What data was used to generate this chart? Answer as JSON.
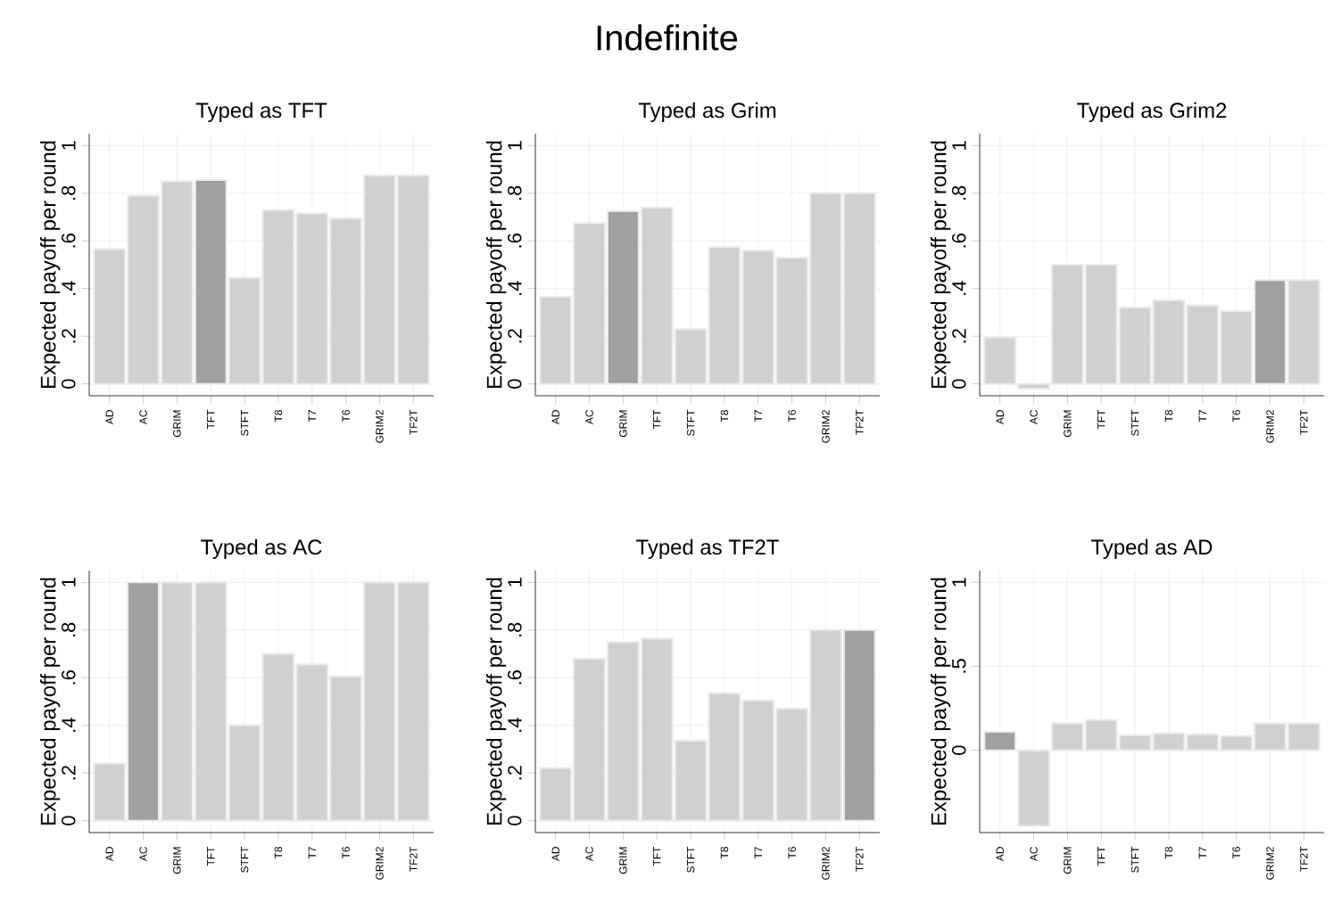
{
  "chart_data": [
    {
      "type": "bar",
      "title": "Typed as TFT",
      "ylabel": "Expected payoff per round",
      "annotations": [
        "Indefinite"
      ],
      "categories": [
        "AD",
        "AC",
        "GRIM",
        "TFT",
        "STFT",
        "T8",
        "T7",
        "T6",
        "GRIM2",
        "TF2T"
      ],
      "values": [
        0.565,
        0.79,
        0.85,
        0.855,
        0.445,
        0.73,
        0.715,
        0.695,
        0.875,
        0.875
      ],
      "colors": [
        "#d0d0d0",
        "#d0d0d0",
        "#d0d0d0",
        "#a0a0a0",
        "#d0d0d0",
        "#d0d0d0",
        "#d0d0d0",
        "#d0d0d0",
        "#d0d0d0",
        "#d0d0d0"
      ],
      "ylim": [
        -0.05,
        1.05
      ],
      "yticks": [
        0,
        {
          "value": 0.2,
          "label": ".2"
        },
        {
          "value": 0.4,
          "label": ".4"
        },
        {
          "value": 0.6,
          "label": ".6"
        },
        {
          "value": 0.8,
          "label": ".8"
        },
        1
      ],
      "grid": true
    },
    {
      "type": "bar",
      "title": "Typed as Grim",
      "ylabel": "Expected payoff per round",
      "categories": [
        "AD",
        "AC",
        "GRIM",
        "TFT",
        "STFT",
        "T8",
        "T7",
        "T6",
        "GRIM2",
        "TF2T"
      ],
      "values": [
        0.365,
        0.675,
        0.725,
        0.74,
        0.23,
        0.575,
        0.56,
        0.53,
        0.8,
        0.8
      ],
      "colors": [
        "#d0d0d0",
        "#d0d0d0",
        "#a0a0a0",
        "#d0d0d0",
        "#d0d0d0",
        "#d0d0d0",
        "#d0d0d0",
        "#d0d0d0",
        "#d0d0d0",
        "#d0d0d0"
      ],
      "ylim": [
        -0.05,
        1.05
      ],
      "yticks": [
        0,
        {
          "value": 0.2,
          "label": ".2"
        },
        {
          "value": 0.4,
          "label": ".4"
        },
        {
          "value": 0.6,
          "label": ".6"
        },
        {
          "value": 0.8,
          "label": ".8"
        },
        1
      ],
      "grid": true
    },
    {
      "type": "bar",
      "title": "Typed as Grim2",
      "ylabel": "Expected payoff per round",
      "categories": [
        "AD",
        "AC",
        "GRIM",
        "TFT",
        "STFT",
        "T8",
        "T7",
        "T6",
        "GRIM2",
        "TF2T"
      ],
      "values": [
        0.195,
        -0.02,
        0.5,
        0.5,
        0.32,
        0.35,
        0.33,
        0.305,
        0.435,
        0.435
      ],
      "colors": [
        "#d0d0d0",
        "#d0d0d0",
        "#d0d0d0",
        "#d0d0d0",
        "#d0d0d0",
        "#d0d0d0",
        "#d0d0d0",
        "#d0d0d0",
        "#a0a0a0",
        "#d0d0d0"
      ],
      "ylim": [
        -0.05,
        1.05
      ],
      "yticks": [
        0,
        {
          "value": 0.2,
          "label": ".2"
        },
        {
          "value": 0.4,
          "label": ".4"
        },
        {
          "value": 0.6,
          "label": ".6"
        },
        {
          "value": 0.8,
          "label": ".8"
        },
        1
      ],
      "grid": true
    },
    {
      "type": "bar",
      "title": "Typed as AC",
      "ylabel": "Expected payoff per round",
      "categories": [
        "AD",
        "AC",
        "GRIM",
        "TFT",
        "STFT",
        "T8",
        "T7",
        "T6",
        "GRIM2",
        "TF2T"
      ],
      "values": [
        0.24,
        1,
        1,
        1,
        0.4,
        0.7,
        0.655,
        0.605,
        1,
        1
      ],
      "colors": [
        "#d0d0d0",
        "#a0a0a0",
        "#d0d0d0",
        "#d0d0d0",
        "#d0d0d0",
        "#d0d0d0",
        "#d0d0d0",
        "#d0d0d0",
        "#d0d0d0",
        "#d0d0d0"
      ],
      "ylim": [
        -0.05,
        1.05
      ],
      "yticks": [
        0,
        {
          "value": 0.2,
          "label": ".2"
        },
        {
          "value": 0.4,
          "label": ".4"
        },
        {
          "value": 0.6,
          "label": ".6"
        },
        {
          "value": 0.8,
          "label": ".8"
        },
        1
      ],
      "grid": true
    },
    {
      "type": "bar",
      "title": "Typed as TF2T",
      "ylabel": "Expected payoff per round",
      "categories": [
        "AD",
        "AC",
        "GRIM",
        "TFT",
        "STFT",
        "T8",
        "T7",
        "T6",
        "GRIM2",
        "TF2T"
      ],
      "values": [
        0.22,
        0.68,
        0.75,
        0.765,
        0.335,
        0.535,
        0.505,
        0.47,
        0.8,
        0.8
      ],
      "colors": [
        "#d0d0d0",
        "#d0d0d0",
        "#d0d0d0",
        "#d0d0d0",
        "#d0d0d0",
        "#d0d0d0",
        "#d0d0d0",
        "#d0d0d0",
        "#d0d0d0",
        "#a0a0a0"
      ],
      "ylim": [
        -0.05,
        1.05
      ],
      "yticks": [
        0,
        {
          "value": 0.2,
          "label": ".2"
        },
        {
          "value": 0.4,
          "label": ".4"
        },
        {
          "value": 0.6,
          "label": ".6"
        },
        {
          "value": 0.8,
          "label": ".8"
        },
        1
      ],
      "grid": true
    },
    {
      "type": "bar",
      "title": "Typed as AD",
      "ylabel": "Expected payoff per round",
      "categories": [
        "AD",
        "AC",
        "GRIM",
        "TFT",
        "STFT",
        "T8",
        "T7",
        "T6",
        "GRIM2",
        "TF2T"
      ],
      "values": [
        0.11,
        -0.45,
        0.16,
        0.18,
        0.09,
        0.1,
        0.095,
        0.085,
        0.16,
        0.16
      ],
      "colors": [
        "#a0a0a0",
        "#d0d0d0",
        "#d0d0d0",
        "#d0d0d0",
        "#d0d0d0",
        "#d0d0d0",
        "#d0d0d0",
        "#d0d0d0",
        "#d0d0d0",
        "#d0d0d0"
      ],
      "ylim": [
        -0.49,
        1.07
      ],
      "yticks": [
        0,
        {
          "value": 0.5,
          "label": ".5"
        },
        1
      ],
      "grid": true
    }
  ]
}
